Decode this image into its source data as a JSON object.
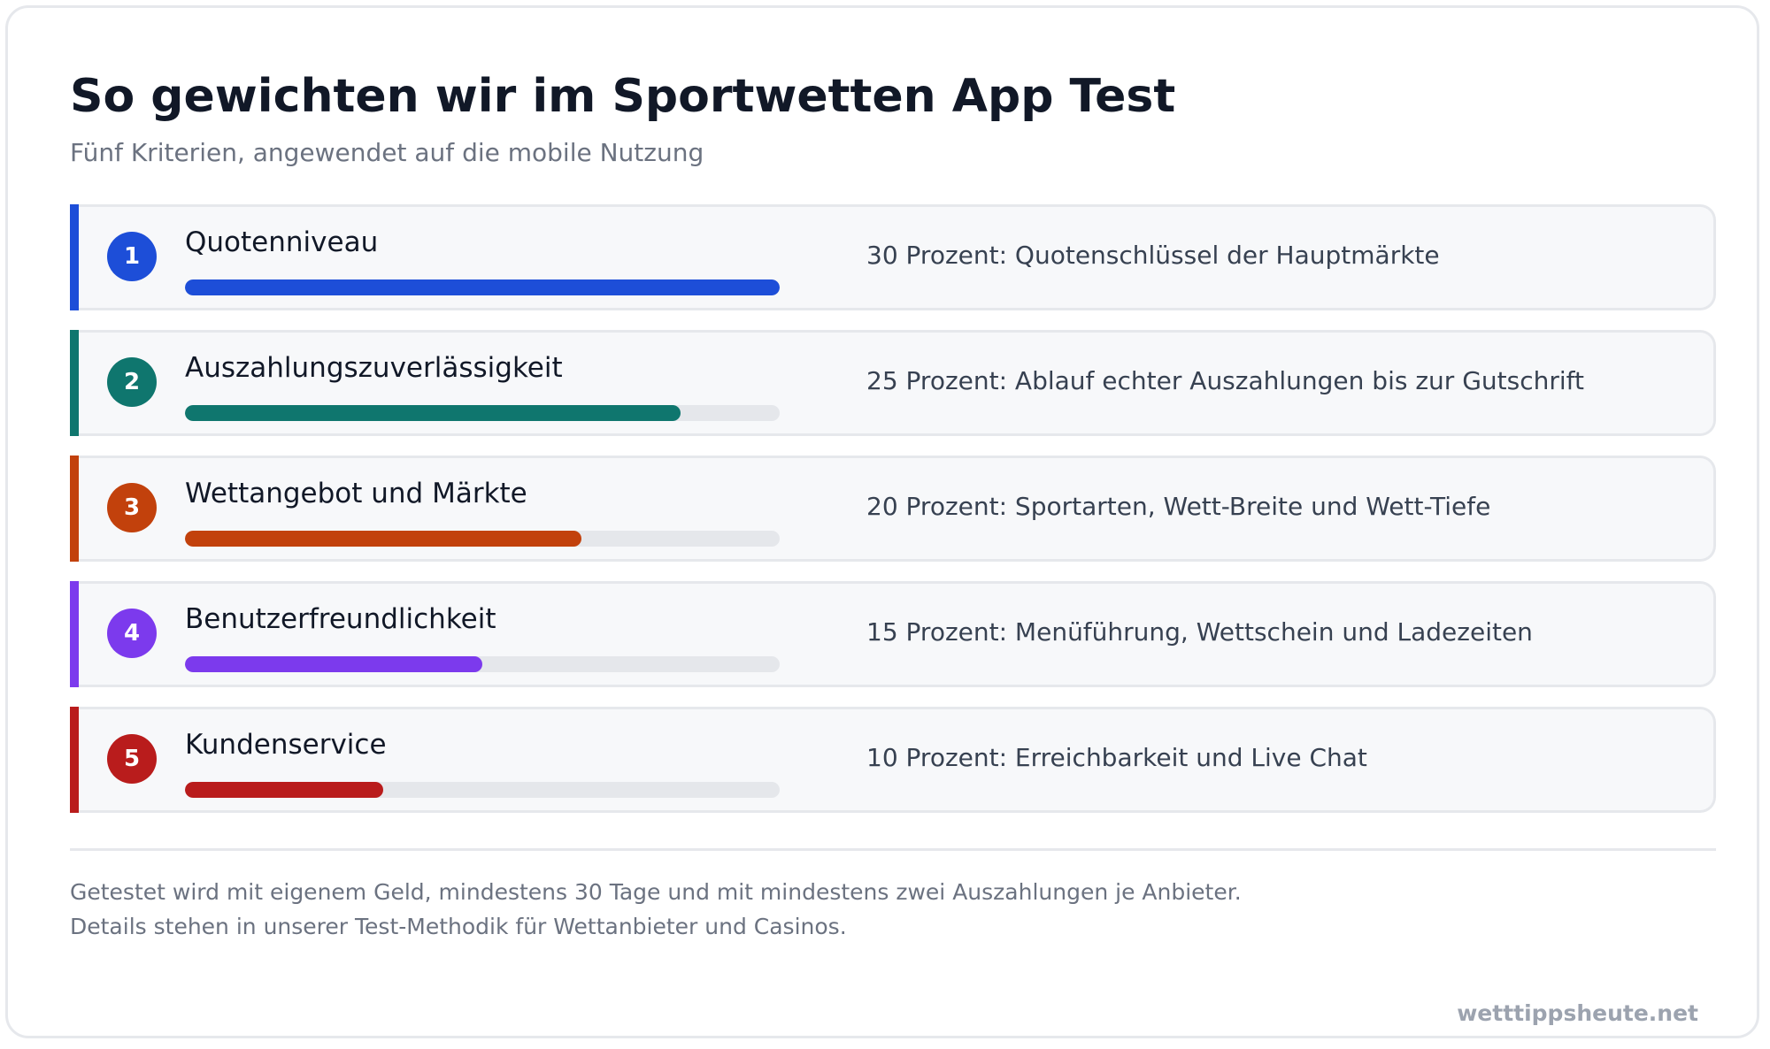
{
  "header": {
    "title": "So gewichten wir im Sportwetten App Test",
    "subtitle": "Fünf Kriterien, angewendet auf die mobile Nutzung"
  },
  "criteria": [
    {
      "number": "1",
      "name": "Quotenniveau",
      "weight_percent": 30,
      "color": "#1d4ed8",
      "description": "30 Prozent: Quotenschlüssel der Hauptmärkte"
    },
    {
      "number": "2",
      "name": "Auszahlungszuverlässigkeit",
      "weight_percent": 25,
      "color": "#0f766e",
      "description": "25 Prozent: Ablauf echter Auszahlungen bis zur Gutschrift"
    },
    {
      "number": "3",
      "name": "Wettangebot und Märkte",
      "weight_percent": 20,
      "color": "#c2410c",
      "description": "20 Prozent: Sportarten, Wett-Breite und Wett-Tiefe"
    },
    {
      "number": "4",
      "name": "Benutzerfreundlichkeit",
      "weight_percent": 15,
      "color": "#7c3aed",
      "description": "15 Prozent: Menüführung, Wettschein und Ladezeiten"
    },
    {
      "number": "5",
      "name": "Kundenservice",
      "weight_percent": 10,
      "color": "#b91c1c",
      "description": "10 Prozent: Erreichbarkeit und Live Chat"
    }
  ],
  "bar_scale_max_percent": 30,
  "footer": {
    "line1": "Getestet wird mit eigenem Geld, mindestens 30 Tage und mit mindestens zwei Auszahlungen je Anbieter.",
    "line2": "Details stehen in unserer Test-Methodik für Wettanbieter und Casinos.",
    "brand": "wetttippsheute.net"
  }
}
